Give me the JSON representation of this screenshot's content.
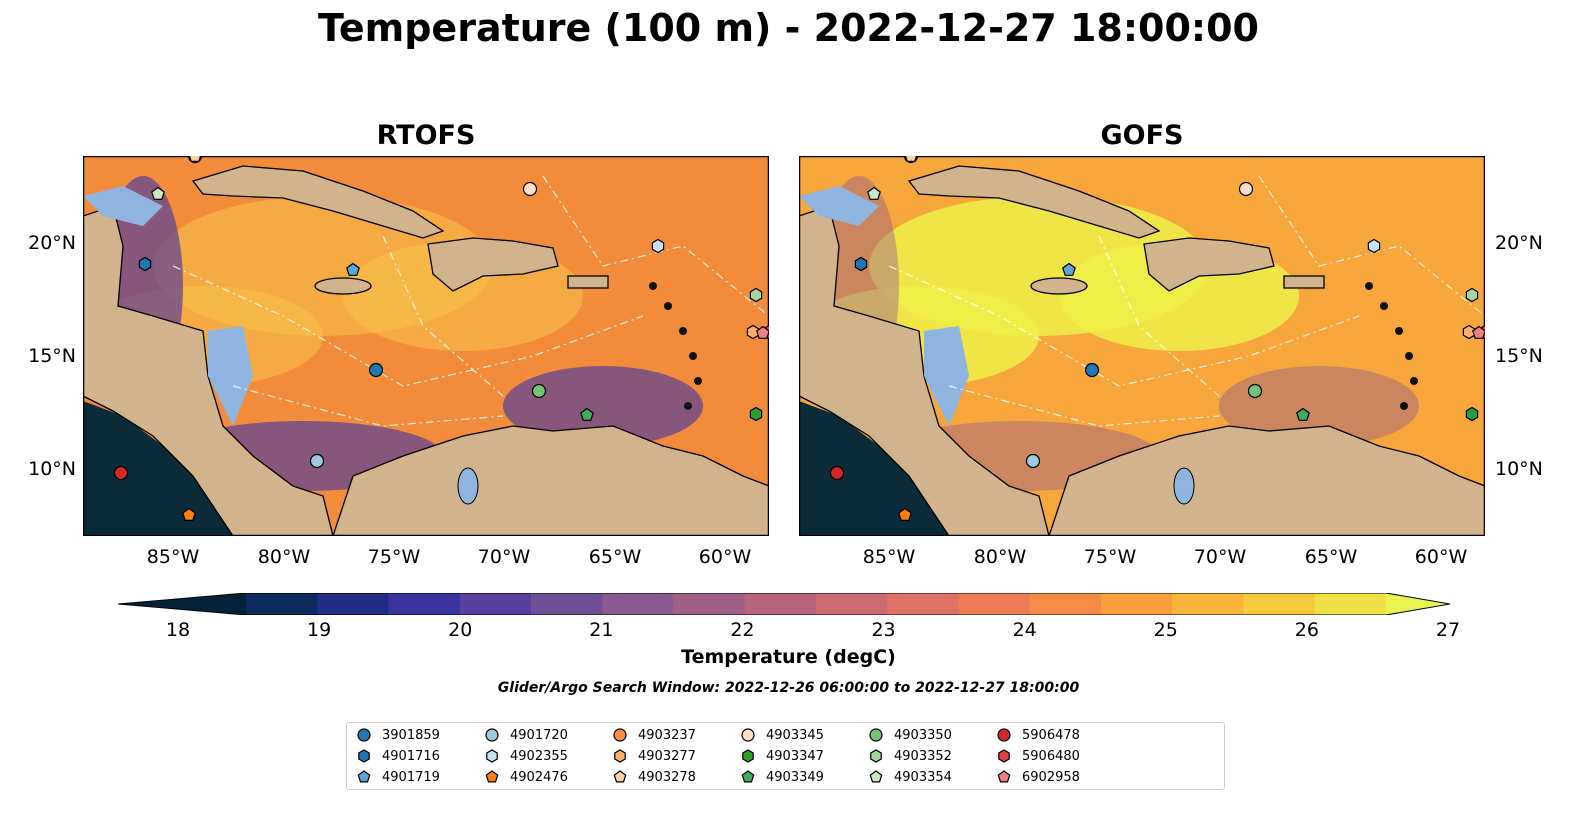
{
  "figure": {
    "title": "Temperature (100 m) - 2022-12-27 18:00:00",
    "panels": [
      {
        "title": "RTOFS"
      },
      {
        "title": "GOFS"
      }
    ],
    "lon_ticks": [
      "85°W",
      "80°W",
      "75°W",
      "70°W",
      "65°W",
      "60°W"
    ],
    "lat_ticks": [
      "20°N",
      "15°N",
      "10°N"
    ],
    "colorbar": {
      "label": "Temperature (degC)",
      "ticks": [
        "18",
        "19",
        "20",
        "21",
        "22",
        "23",
        "24",
        "25",
        "26",
        "27"
      ],
      "range": [
        18,
        27
      ],
      "extend": "both",
      "colormap": "thermal"
    },
    "search_window": "Glider/Argo Search Window: 2022-12-26 06:00:00 to 2022-12-27 18:00:00",
    "legend": [
      {
        "id": "3901859",
        "marker": "circle",
        "color": "#1f77b4"
      },
      {
        "id": "4901716",
        "marker": "hexagon",
        "color": "#1f77b4"
      },
      {
        "id": "4901719",
        "marker": "pentagon",
        "color": "#5da5da"
      },
      {
        "id": "4901720",
        "marker": "circle",
        "color": "#9ecae1"
      },
      {
        "id": "4902355",
        "marker": "hexagon",
        "color": "#c6e2f5"
      },
      {
        "id": "4902476",
        "marker": "pentagon",
        "color": "#ff7f0e"
      },
      {
        "id": "4903237",
        "marker": "circle",
        "color": "#fd8d3c"
      },
      {
        "id": "4903277",
        "marker": "hexagon",
        "color": "#fdae6b"
      },
      {
        "id": "4903278",
        "marker": "pentagon",
        "color": "#fdd0a2"
      },
      {
        "id": "4903345",
        "marker": "circle",
        "color": "#fde0c8"
      },
      {
        "id": "4903347",
        "marker": "hexagon",
        "color": "#2ca02c"
      },
      {
        "id": "4903349",
        "marker": "pentagon",
        "color": "#41ab5d"
      },
      {
        "id": "4903350",
        "marker": "circle",
        "color": "#74c476"
      },
      {
        "id": "4903352",
        "marker": "hexagon",
        "color": "#a1d99b"
      },
      {
        "id": "4903354",
        "marker": "pentagon",
        "color": "#c7e9c0"
      },
      {
        "id": "5906478",
        "marker": "circle",
        "color": "#d62728"
      },
      {
        "id": "5906480",
        "marker": "hexagon",
        "color": "#de4445"
      },
      {
        "id": "6902958",
        "marker": "pentagon",
        "color": "#f08080"
      }
    ]
  }
}
